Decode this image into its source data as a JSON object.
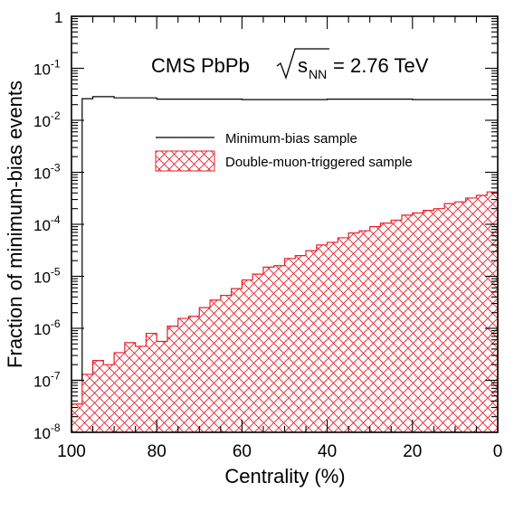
{
  "chart_data": {
    "type": "histogram",
    "title": "CMS PbPb",
    "energy_label": {
      "sqrt_symbol": "√",
      "base": "s",
      "subscript": "NN",
      "value": "= 2.76 TeV"
    },
    "xlabel": "Centrality (%)",
    "ylabel": "Fraction of minimum-bias events",
    "x_axis": {
      "range": [
        100,
        0
      ],
      "reversed": true,
      "tick_labels": [
        "100",
        "80",
        "60",
        "40",
        "20",
        "0"
      ],
      "tick_values": [
        100,
        80,
        60,
        40,
        20,
        0
      ]
    },
    "y_axis": {
      "scale": "log",
      "range": [
        1e-08,
        1
      ],
      "tick_labels": [
        {
          "base": "10",
          "exp": "-8",
          "value": 1e-08
        },
        {
          "base": "10",
          "exp": "-7",
          "value": 1e-07
        },
        {
          "base": "10",
          "exp": "-6",
          "value": 1e-06
        },
        {
          "base": "10",
          "exp": "-5",
          "value": 1e-05
        },
        {
          "base": "10",
          "exp": "-4",
          "value": 0.0001
        },
        {
          "base": "10",
          "exp": "-3",
          "value": 0.001
        },
        {
          "base": "10",
          "exp": "-2",
          "value": 0.01
        },
        {
          "base": "10",
          "exp": "-1",
          "value": 0.1
        },
        {
          "base": "",
          "exp": "",
          "value": 1,
          "label": "1"
        }
      ]
    },
    "legend": {
      "placement": "top-center",
      "entries": [
        {
          "label": "Minimum-bias sample",
          "style": "line",
          "color": "#000000"
        },
        {
          "label": "Double-muon-triggered sample",
          "style": "hatched",
          "color": "#e8202a"
        }
      ]
    },
    "series": [
      {
        "name": "Minimum-bias sample",
        "color": "#000000",
        "bin_edges": [
          100,
          97.5,
          95,
          90,
          80,
          60,
          40,
          20,
          0
        ],
        "values": [
          1e-07,
          0.026,
          0.0285,
          0.027,
          0.0255,
          0.025,
          0.0255,
          0.025
        ]
      },
      {
        "name": "Double-muon-triggered sample",
        "color": "#e8202a",
        "hatched": true,
        "bin_width": 2.5,
        "bin_starts": [
          97.5,
          95,
          92.5,
          90,
          87.5,
          85,
          82.5,
          80,
          77.5,
          75,
          72.5,
          70,
          67.5,
          65,
          62.5,
          60,
          57.5,
          55,
          52.5,
          50,
          47.5,
          45,
          42.5,
          40,
          37.5,
          35,
          32.5,
          30,
          27.5,
          25,
          22.5,
          20,
          17.5,
          15,
          12.5,
          10,
          7.5,
          5,
          2.5,
          0
        ],
        "values": [
          3.5e-08,
          1.3e-07,
          2.4e-07,
          2e-07,
          3.4e-07,
          5.3e-07,
          4.5e-07,
          8e-07,
          5.6e-07,
          1.1e-06,
          1.55e-06,
          1.7e-06,
          2.5e-06,
          3.5e-06,
          4.3e-06,
          5.8e-06,
          8.5e-06,
          1.1e-05,
          1.5e-05,
          1.6e-05,
          2.2e-05,
          2.5e-05,
          3.1e-05,
          4e-05,
          4.5e-05,
          5.5e-05,
          6.8e-05,
          7.5e-05,
          9e-05,
          0.000105,
          0.00012,
          0.00015,
          0.000165,
          0.000185,
          0.0002,
          0.00025,
          0.00027,
          0.00032,
          0.00036,
          0.00042
        ]
      }
    ]
  }
}
